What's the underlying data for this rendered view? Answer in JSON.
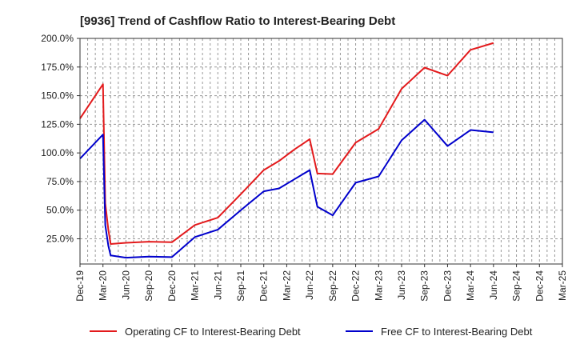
{
  "chart_data": {
    "type": "line",
    "title": "[9936]  Trend of Cashflow Ratio to Interest-Bearing Debt",
    "x_tick_labels": [
      "Dec-19",
      "Mar-20",
      "Jun-20",
      "Sep-20",
      "Dec-20",
      "Mar-21",
      "Jun-21",
      "Sep-21",
      "Dec-21",
      "Mar-22",
      "Jun-22",
      "Sep-22",
      "Dec-22",
      "Mar-23",
      "Jun-23",
      "Sep-23",
      "Dec-23",
      "Mar-24",
      "Jun-24",
      "Sep-24",
      "Dec-24",
      "Mar-25"
    ],
    "y_tick_labels": [
      "25.0%",
      "50.0%",
      "75.0%",
      "100.0%",
      "125.0%",
      "150.0%",
      "175.0%",
      "200.0%"
    ],
    "y_ticks": [
      25,
      50,
      75,
      100,
      125,
      150,
      175,
      200
    ],
    "ylim": [
      3,
      200
    ],
    "grid": true,
    "legend_position": "bottom",
    "series": [
      {
        "name": "Operating CF to Interest-Bearing Debt",
        "color": "#e31a1c",
        "x": [
          0,
          3,
          3.3,
          3.7,
          4,
          6,
          9,
          12,
          15,
          18,
          21,
          24,
          26,
          28,
          30,
          31,
          33,
          36,
          39,
          42,
          45,
          48,
          51,
          54,
          57,
          60
        ],
        "values": [
          130,
          160,
          56,
          33,
          20.5,
          21.5,
          22.5,
          22,
          37,
          43.5,
          64,
          85,
          93,
          103,
          112,
          82,
          81.5,
          109,
          121,
          156,
          174.5,
          167.5,
          190,
          196,
          null,
          null
        ]
      },
      {
        "name": "Free CF to Interest-Bearing Debt",
        "color": "#0000cc",
        "x": [
          0,
          3,
          3.3,
          3.7,
          4,
          6,
          9,
          12,
          15,
          18,
          21,
          24,
          26,
          28,
          30,
          31,
          33,
          36,
          39,
          42,
          45,
          48,
          51,
          54,
          57,
          60
        ],
        "values": [
          95,
          116,
          37,
          19,
          10.5,
          8.5,
          9.5,
          9,
          26.5,
          33,
          50,
          66.5,
          69,
          77,
          85,
          53,
          45.5,
          74,
          79.5,
          111,
          129,
          106,
          120,
          118,
          null,
          null
        ]
      }
    ]
  }
}
